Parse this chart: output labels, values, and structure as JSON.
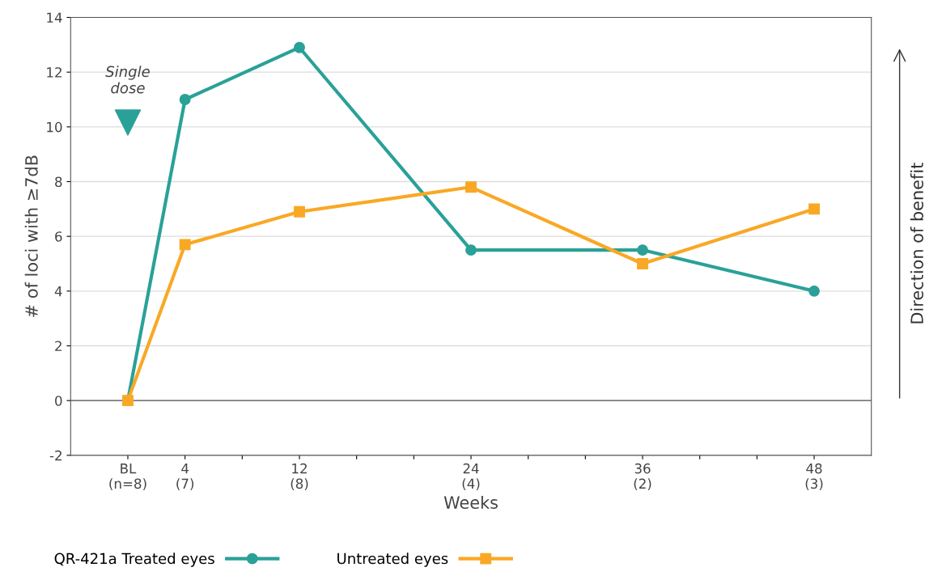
{
  "chart_data": {
    "type": "line",
    "xlabel": "Weeks",
    "ylabel": "# of loci with ≥7dB",
    "categories": [
      "BL\n(n=8)",
      "4\n(7)",
      null,
      "12\n(8)",
      null,
      null,
      "24\n(4)",
      null,
      null,
      "36\n(2)",
      null,
      null,
      "48\n(3)"
    ],
    "series": [
      {
        "name": "QR-421a Treated eyes",
        "color": "#2aa198",
        "marker": "circle",
        "values": [
          0,
          11,
          null,
          12.9,
          null,
          null,
          5.5,
          null,
          null,
          5.5,
          null,
          null,
          4
        ]
      },
      {
        "name": "Untreated eyes",
        "color": "#f9a825",
        "marker": "square",
        "values": [
          0,
          5.7,
          null,
          6.9,
          null,
          null,
          7.8,
          null,
          null,
          5,
          null,
          null,
          7
        ]
      }
    ],
    "ylim": [
      -2,
      14
    ],
    "yticks": [
      -2,
      0,
      2,
      4,
      6,
      8,
      10,
      12,
      14
    ],
    "grid": "y",
    "legend": "bottom",
    "ref_lines": [
      {
        "axis": "y",
        "value": 0,
        "color": "#555555"
      }
    ],
    "annotations": [
      "Single dose",
      "Direction of benefit"
    ]
  }
}
